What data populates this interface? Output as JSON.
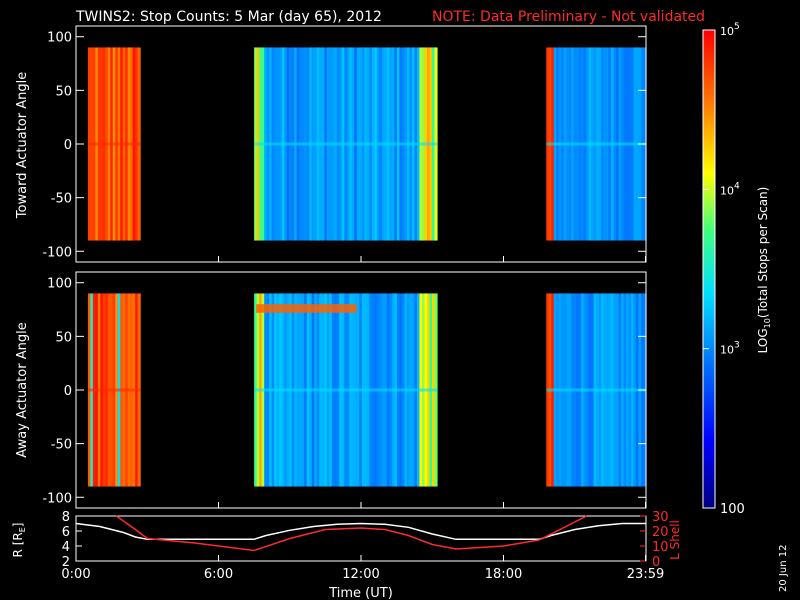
{
  "header": {
    "title": "TWINS2: Stop Counts:  5 Mar (day  65), 2012",
    "note": "NOTE: Data Preliminary - Not validated"
  },
  "footer": {
    "date_stamp": "20 Jun 12"
  },
  "colors": {
    "background": "#000000",
    "axes": "#ffffff",
    "note": "#ff2a2a",
    "r_line": "#ffffff",
    "l_shell_line": "#ff2a2a"
  },
  "chart_data": [
    {
      "type": "heatmap",
      "ylabel": "Toward Actuator Angle",
      "ylim": [
        -110,
        110
      ],
      "yticks": [
        100,
        50,
        0,
        -50,
        -100
      ],
      "xlim": [
        0,
        24
      ],
      "data_range_y": [
        -90,
        90
      ],
      "data_blocks_hours": [
        [
          0.5,
          2.7
        ],
        [
          7.5,
          15.2
        ],
        [
          19.8,
          24
        ]
      ],
      "colormap": "rainbow",
      "zlim": [
        100,
        100000
      ]
    },
    {
      "type": "heatmap",
      "ylabel": "Away Actuator Angle",
      "ylim": [
        -110,
        110
      ],
      "yticks": [
        100,
        50,
        0,
        -50,
        -100
      ],
      "xlim": [
        0,
        24
      ],
      "data_range_y": [
        -90,
        90
      ],
      "data_blocks_hours": [
        [
          0.5,
          2.7
        ],
        [
          7.5,
          15.2
        ],
        [
          19.8,
          24
        ]
      ],
      "colormap": "rainbow",
      "zlim": [
        100,
        100000
      ]
    },
    {
      "type": "line",
      "ylabel_left": "R [R",
      "ylabel_left_sub": "E",
      "ylabel_left_end": "]",
      "ylabel_right": "L Shell",
      "ylim_left": [
        2,
        8
      ],
      "yticks_left": [
        8,
        6,
        4,
        2
      ],
      "ylim_right": [
        0,
        30
      ],
      "yticks_right": [
        30,
        20,
        10,
        0
      ],
      "xlabel": "Time (UT)",
      "xlim": [
        0,
        24
      ],
      "xticks": [
        "0:00",
        "6:00",
        "12:00",
        "18:00",
        "23:59"
      ],
      "xtick_hours": [
        0,
        6,
        12,
        18,
        23.98
      ],
      "series": [
        {
          "axis": "left",
          "x": [
            0,
            1,
            2,
            2.5,
            3,
            4,
            6,
            7.5,
            8,
            9,
            10,
            11,
            12,
            13,
            14,
            15,
            16,
            18,
            19.5,
            20,
            21,
            22,
            23,
            24
          ],
          "values": [
            7.0,
            6.6,
            5.8,
            5.2,
            4.9,
            4.9,
            4.9,
            4.9,
            5.4,
            6.1,
            6.6,
            6.9,
            7.0,
            6.9,
            6.5,
            5.6,
            4.9,
            4.9,
            4.9,
            5.4,
            6.2,
            6.7,
            7.0,
            7.0
          ]
        },
        {
          "axis": "right",
          "x": [
            1.7,
            2.5,
            3,
            5,
            7.5,
            9,
            10.5,
            12,
            13,
            14,
            15,
            16,
            17,
            18,
            19.5,
            20.5,
            21.5
          ],
          "values": [
            30,
            21,
            15,
            12,
            7,
            15,
            21,
            22,
            21,
            17,
            11,
            8,
            9,
            10,
            14,
            22,
            30
          ]
        }
      ]
    },
    {
      "type": "colorbar",
      "title_prefix": "LOG",
      "title_sub": "10",
      "title_suffix": "(Total Stops per Scan)",
      "ticks": [
        {
          "base": "10",
          "exp": "5"
        },
        {
          "base": "10",
          "exp": "4"
        },
        {
          "base": "10",
          "exp": "3"
        },
        {
          "label": "100"
        }
      ],
      "zlim": [
        100,
        100000
      ]
    }
  ]
}
